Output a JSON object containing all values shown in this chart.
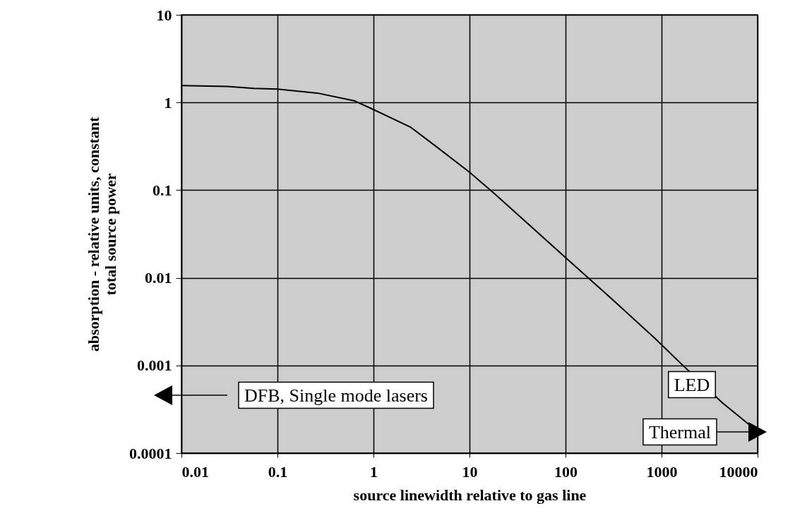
{
  "chart_data": {
    "type": "line",
    "xlabel": "source linewidth relative to gas line",
    "ylabel": "absorption - relative units, constant total source power",
    "log": "xy",
    "grid": true,
    "marker": "none",
    "line_style": "solid",
    "xlim": [
      0.01,
      10000
    ],
    "xticks": [
      0.01,
      0.1,
      1,
      10,
      100,
      1000,
      10000
    ],
    "ylim": [
      0.0001,
      10
    ],
    "yticks": [
      0.0001,
      0.001,
      0.01,
      0.1,
      1,
      10
    ],
    "x": [
      0.01,
      0.03,
      0.057,
      0.1,
      0.26,
      0.64,
      1,
      2.45,
      4.4,
      10,
      17.8,
      40,
      100,
      300,
      870,
      1550,
      4300,
      7800,
      10000
    ],
    "series": [
      {
        "color": "#000000",
        "values": [
          1.56,
          1.52,
          1.45,
          1.42,
          1.28,
          1.04,
          0.83,
          0.52,
          0.32,
          0.16,
          0.093,
          0.042,
          0.017,
          0.0058,
          0.002,
          0.00108,
          0.000374,
          0.00022,
          0.00018
        ]
      }
    ],
    "annotations": [
      "DFB, Single mode lasers",
      "LED",
      "Thermal"
    ]
  }
}
